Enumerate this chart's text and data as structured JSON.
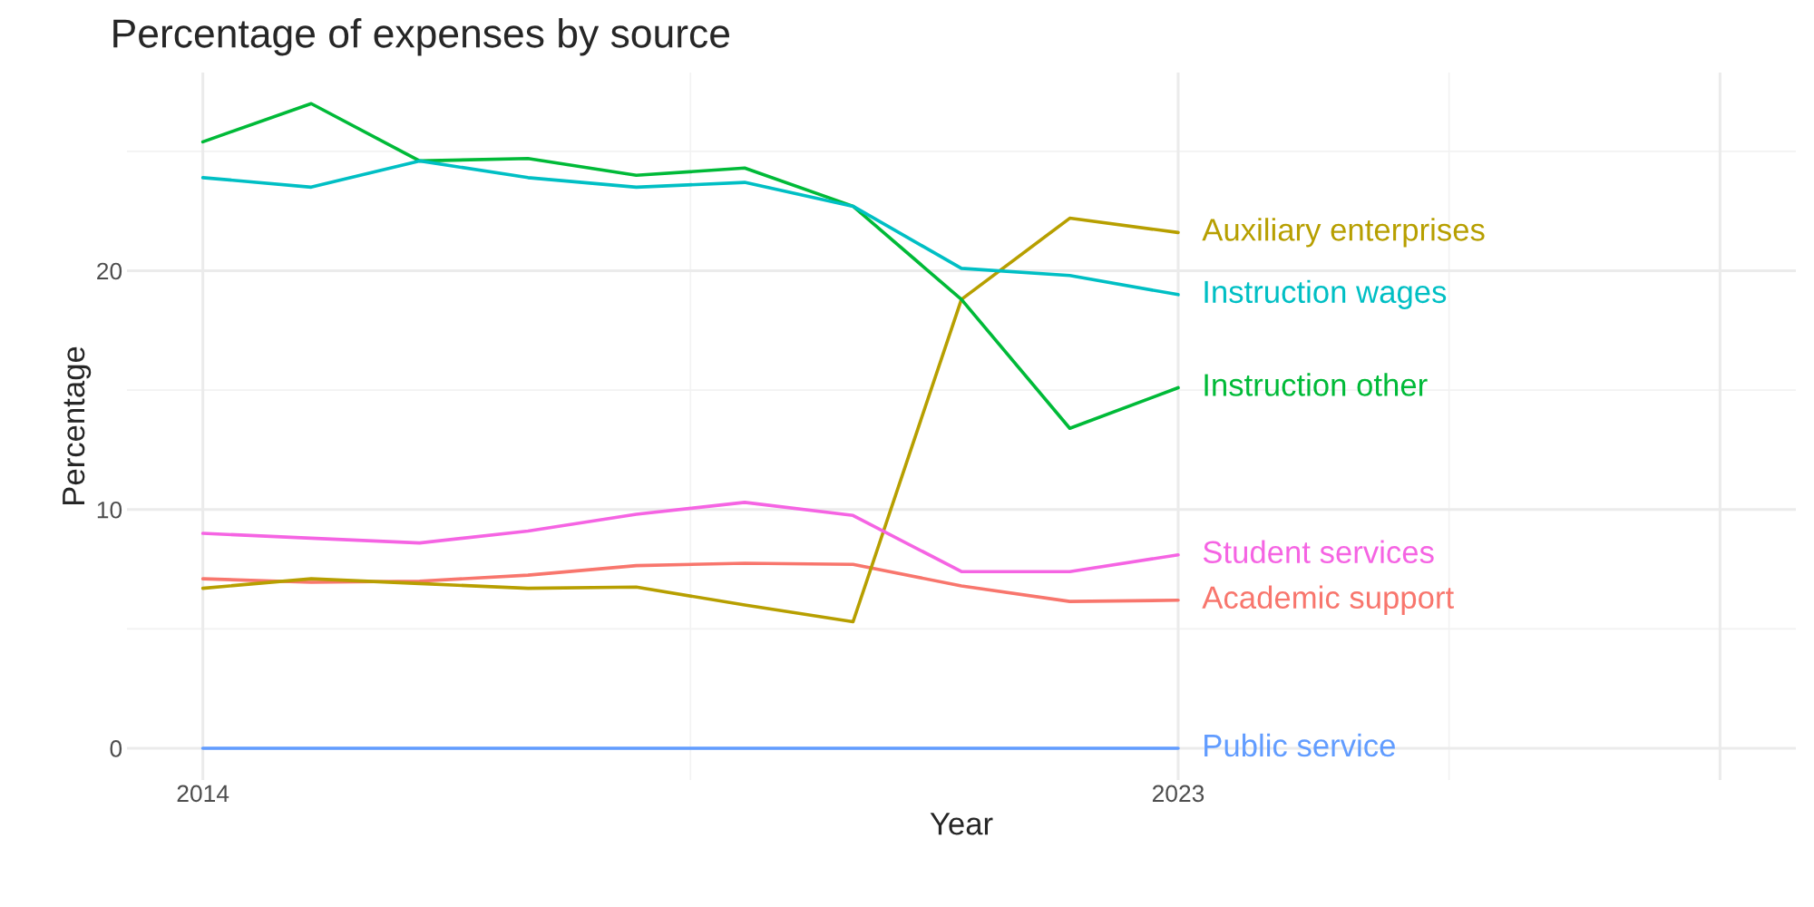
{
  "chart_data": {
    "type": "line",
    "title": "Percentage of expenses by source",
    "xlabel": "Year",
    "ylabel": "Percentage",
    "x": [
      2014,
      2015,
      2016,
      2017,
      2018,
      2019,
      2020,
      2021,
      2022,
      2023
    ],
    "series": [
      {
        "name": "Academic support",
        "color": "#f8766d",
        "values": [
          7.1,
          6.95,
          7.0,
          7.25,
          7.65,
          7.75,
          7.7,
          6.8,
          6.15,
          6.2
        ]
      },
      {
        "name": "Auxiliary enterprises",
        "color": "#b79f00",
        "values": [
          6.7,
          7.1,
          6.9,
          6.7,
          6.75,
          6.0,
          5.3,
          18.8,
          22.2,
          21.6
        ]
      },
      {
        "name": "Instruction other",
        "color": "#00ba38",
        "values": [
          25.4,
          27.0,
          24.6,
          24.7,
          24.0,
          24.3,
          22.7,
          18.8,
          13.4,
          15.1
        ]
      },
      {
        "name": "Instruction wages",
        "color": "#00bfc4",
        "values": [
          23.9,
          23.5,
          24.6,
          23.9,
          23.5,
          23.7,
          22.7,
          20.1,
          19.8,
          19.0
        ]
      },
      {
        "name": "Public service",
        "color": "#619cff",
        "values": [
          0,
          0,
          0,
          0,
          0,
          0,
          0,
          0,
          0,
          0
        ]
      },
      {
        "name": "Student services",
        "color": "#f564e3",
        "values": [
          9.0,
          8.8,
          8.6,
          9.1,
          9.8,
          10.3,
          9.75,
          7.4,
          7.4,
          8.1
        ]
      }
    ],
    "xlim": [
      2013.3,
      2028.7
    ],
    "ylim": [
      -1.33,
      28.3
    ],
    "xticks": [
      2014,
      2023,
      {
        "value": 2028,
        "label": null
      }
    ],
    "yticks": [
      0,
      10,
      20
    ],
    "grid": true,
    "legend": false,
    "marker": "none",
    "line_style": "solid"
  }
}
